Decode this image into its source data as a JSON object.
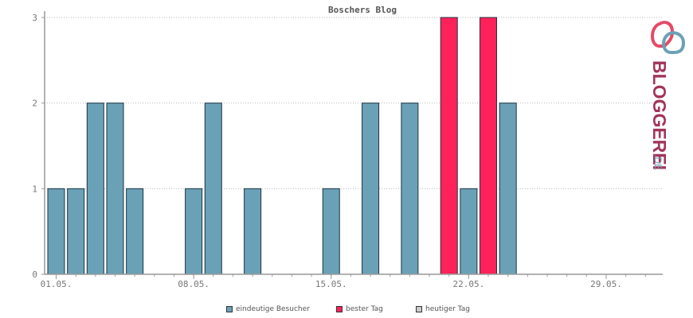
{
  "chart_data": {
    "type": "bar",
    "title": "Boschers Blog",
    "ylim": [
      0,
      3
    ],
    "yticks": [
      "0",
      "1",
      "2",
      "3"
    ],
    "x_tick_labels": [
      "01.05.",
      "08.05.",
      "15.05.",
      "22.05.",
      "29.05."
    ],
    "days": [
      "01.05.",
      "02.05.",
      "03.05.",
      "04.05.",
      "05.05.",
      "06.05.",
      "07.05.",
      "08.05.",
      "09.05.",
      "10.05.",
      "11.05.",
      "12.05.",
      "13.05.",
      "14.05.",
      "15.05.",
      "16.05.",
      "17.05.",
      "18.05.",
      "19.05.",
      "20.05.",
      "21.05.",
      "22.05.",
      "23.05.",
      "24.05.",
      "25.05.",
      "26.05.",
      "27.05.",
      "28.05.",
      "29.05.",
      "30.05.",
      "31.05."
    ],
    "series": [
      {
        "name": "eindeutige Besucher",
        "values": [
          1,
          1,
          2,
          2,
          1,
          0,
          0,
          1,
          2,
          0,
          1,
          0,
          0,
          0,
          1,
          0,
          2,
          0,
          2,
          0,
          0,
          1,
          0,
          2,
          0,
          0,
          0,
          0,
          0,
          0,
          0
        ]
      },
      {
        "name": "bester Tag",
        "values": [
          0,
          0,
          0,
          0,
          0,
          0,
          0,
          0,
          0,
          0,
          0,
          0,
          0,
          0,
          0,
          0,
          0,
          0,
          0,
          0,
          3,
          0,
          3,
          0,
          0,
          0,
          0,
          0,
          0,
          0,
          0
        ]
      },
      {
        "name": "heutiger Tag",
        "values": [
          0,
          0,
          0,
          0,
          0,
          0,
          0,
          0,
          0,
          0,
          0,
          0,
          0,
          0,
          0,
          0,
          0,
          0,
          0,
          0,
          0,
          0,
          0,
          0,
          0,
          0,
          0,
          0,
          0,
          0,
          0
        ]
      }
    ],
    "grid": true,
    "legend_position": "bottom"
  },
  "legend": [
    {
      "label": "eindeutige Besucher",
      "color": "#6aa1b7"
    },
    {
      "label": "bester Tag",
      "color": "#ff225a"
    },
    {
      "label": "heutiger Tag",
      "color": "#cccccc"
    }
  ],
  "brand": {
    "name": "BLOGGEREI",
    "tld": ".DE",
    "logo_icon": "bloggerei-logo-icon"
  }
}
